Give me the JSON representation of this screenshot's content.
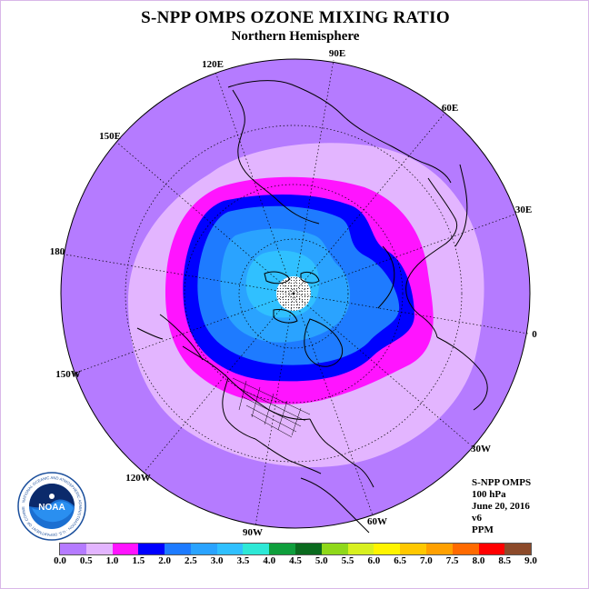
{
  "title": "S-NPP OMPS OZONE MIXING RATIO",
  "subtitle": "Northern Hemisphere",
  "longitude_labels": [
    "90E",
    "60E",
    "30E",
    "0",
    "30W",
    "60W",
    "90W",
    "120W",
    "150W",
    "180",
    "150E",
    "120E"
  ],
  "info": {
    "instrument": "S-NPP OMPS",
    "pressure": "100 hPa",
    "date": "June 20, 2016",
    "version": "v6",
    "units": "PPM"
  },
  "logo": {
    "label": "NOAA",
    "ring_text": "NATIONAL OCEANIC AND ATMOSPHERIC ADMINISTRATION · U.S. DEPARTMENT OF COMMERCE"
  },
  "colorbar": {
    "tick_labels": [
      "0.0",
      "0.5",
      "1.0",
      "1.5",
      "2.0",
      "2.5",
      "3.0",
      "3.5",
      "4.0",
      "4.5",
      "5.0",
      "5.5",
      "6.0",
      "6.5",
      "7.0",
      "7.5",
      "8.0",
      "8.5",
      "9.0"
    ],
    "colors": [
      "#b57bff",
      "#e3b5ff",
      "#ff14ff",
      "#0000ff",
      "#1e7bff",
      "#2aa3ff",
      "#30c0ff",
      "#2ee8d6",
      "#0f9e3c",
      "#0a6a1e",
      "#8fd81a",
      "#d8f020",
      "#fff400",
      "#ffc800",
      "#ffa000",
      "#ff6a00",
      "#ff0000",
      "#8c4a2a"
    ]
  },
  "map_colors": {
    "background_disc": "#b57bff",
    "ring_0_5_1_0": "#e3b5ff",
    "ring_1_0_1_5": "#ff14ff",
    "ring_1_5_2_0": "#0000ff",
    "ring_2_0_2_5": "#1e7bff",
    "ring_2_5_3_0": "#2aa3ff",
    "ring_3_0_3_5": "#30c0ff",
    "pole_missing": "#ffffff"
  }
}
